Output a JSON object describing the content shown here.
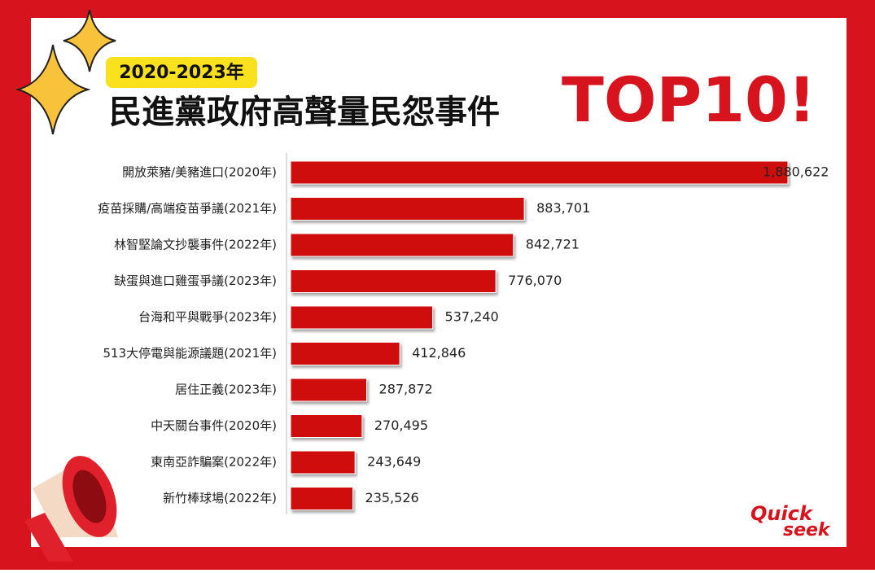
{
  "chart_data": {
    "type": "bar",
    "orientation": "horizontal",
    "badge": "2020-2023年",
    "title": "民進黨政府高聲量民怨事件",
    "highlight": "TOP10!",
    "categories": [
      "開放萊豬/美豬進口(2020年)",
      "疫苗採購/高端疫苗爭議(2021年)",
      "林智堅論文抄襲事件(2022年)",
      "缺蛋與進口雞蛋爭議(2023年)",
      "台海和平與戰爭(2023年)",
      "513大停電與能源議題(2021年)",
      "居住正義(2023年)",
      "中天關台事件(2020年)",
      "東南亞詐騙案(2022年)",
      "新竹棒球場(2022年)"
    ],
    "values": [
      1880622,
      883701,
      842721,
      776070,
      537240,
      412846,
      287872,
      270495,
      243649,
      235526
    ],
    "value_labels": [
      "1,880,622",
      "883,701",
      "842,721",
      "776,070",
      "537,240",
      "412,846",
      "287,872",
      "270,495",
      "243,649",
      "235,526"
    ],
    "color": "#d0070f"
  },
  "logo": {
    "line1": "Quick",
    "line2": "seek"
  }
}
